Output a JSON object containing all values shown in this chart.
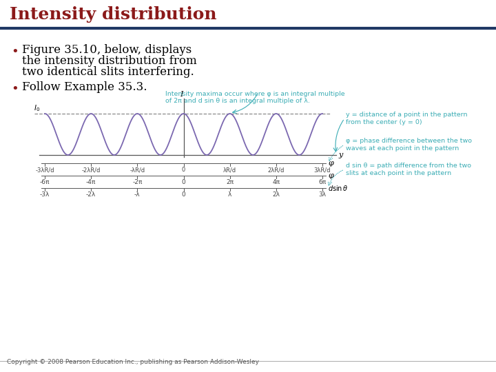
{
  "title": "Intensity distribution",
  "title_color": "#8B1A1A",
  "bg_color": "#FFFFFF",
  "header_line_color": "#1F3864",
  "bullet1_line1": "Figure 35.10, below, displays",
  "bullet1_line2": "the intensity distribution from",
  "bullet1_line3": "two identical slits interfering.",
  "bullet2": "Follow Example 35.3.",
  "curve_color": "#7B68B0",
  "dashed_line_color": "#888888",
  "annotation_color": "#3AACB4",
  "axis_color": "#555555",
  "label_color": "#444444",
  "copyright": "Copyright © 2008 Pearson Education Inc., publishing as Pearson Addison-Wesley",
  "y_label": "y",
  "phi_label": "φ",
  "I_label": "I",
  "I0_label": "I₀",
  "annotation1": "Intensity maxima occur where φ is an integral multiple\nof 2π and d sin θ is an integral multiple of λ.",
  "annotation2": "y = distance of a point in the pattern\nfrom the center (y = 0)",
  "annotation3": "φ = phase difference between the two\nwaves at each point in the pattern",
  "annotation4": "d sin θ = path difference from the two\nslits at each point in the pattern",
  "x_ticks_y": [
    "-3λR/d",
    "-2λR/d",
    "-λR/d",
    "0",
    "λR/d",
    "2λR/d",
    "3λR/d"
  ],
  "x_ticks_phi": [
    "-6π",
    "-4π",
    "-2π",
    "0",
    "2π",
    "4π",
    "6π"
  ],
  "x_ticks_d": [
    "-3λ",
    "-2λ",
    "-λ",
    "0",
    "λ",
    "2λ",
    "3λ"
  ],
  "title_bg_color": "#FFFFFF",
  "bullet_color": "#8B1A1A"
}
